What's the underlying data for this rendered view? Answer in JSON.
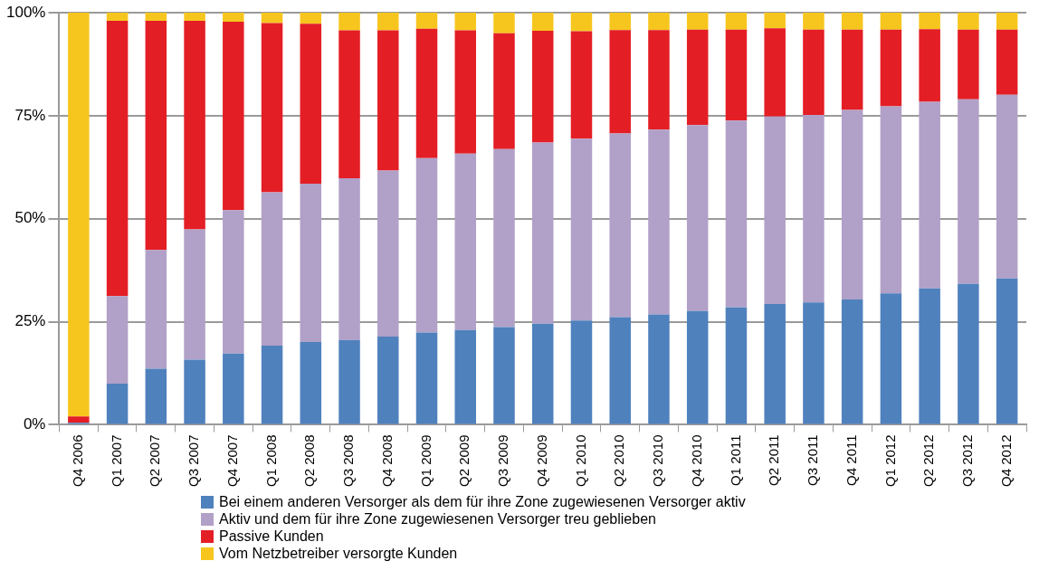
{
  "chart_data": {
    "type": "bar",
    "stacked": true,
    "categories": [
      "Q4 2006",
      "Q1 2007",
      "Q2 2007",
      "Q3 2007",
      "Q4 2007",
      "Q1 2008",
      "Q2 2008",
      "Q3 2008",
      "Q4 2008",
      "Q1 2009",
      "Q2 2009",
      "Q3 2009",
      "Q4 2009",
      "Q1 2010",
      "Q2 2010",
      "Q3 2010",
      "Q4 2010",
      "Q1 2011",
      "Q2 2011",
      "Q3 2011",
      "Q4 2011",
      "Q1 2012",
      "Q2 2012",
      "Q3 2012",
      "Q4 2012"
    ],
    "series": [
      {
        "name": "Bei einem anderen Versorger als dem für ihre Zone zugewiesenen Versorger aktiv",
        "color": "#4f81bd",
        "values": [
          0.5,
          10.0,
          13.6,
          15.8,
          17.3,
          19.2,
          20.1,
          20.6,
          21.4,
          22.4,
          23.0,
          23.7,
          24.5,
          25.3,
          26.1,
          26.8,
          27.6,
          28.5,
          29.3,
          29.7,
          30.4,
          31.9,
          33.1,
          34.2,
          35.5
        ]
      },
      {
        "name": "Aktiv und dem für ihre Zone zugewiesenen Versorger treu geblieben",
        "color": "#b1a0c7",
        "values": [
          0,
          21.2,
          28.8,
          31.6,
          34.8,
          37.2,
          38.4,
          39.2,
          40.3,
          42.3,
          42.8,
          43.2,
          44.0,
          44.1,
          44.6,
          44.8,
          45.1,
          45.3,
          45.5,
          45.5,
          46.0,
          45.4,
          45.3,
          44.8,
          44.6
        ]
      },
      {
        "name": "Passive Kunden",
        "color": "#e41e25",
        "values": [
          1.5,
          66.8,
          55.6,
          50.6,
          45.7,
          41.1,
          38.8,
          35.9,
          34.0,
          31.4,
          29.9,
          28.1,
          27.1,
          26.1,
          25.1,
          24.2,
          23.2,
          22.1,
          21.4,
          20.7,
          19.5,
          18.6,
          17.6,
          16.9,
          15.8
        ]
      },
      {
        "name": "Vom Netzbetreiber versorgte Kunden",
        "color": "#f6c61e",
        "values": [
          98,
          2,
          2,
          2,
          2.2,
          2.5,
          2.7,
          4.3,
          4.3,
          3.9,
          4.3,
          5.0,
          4.4,
          4.5,
          4.2,
          4.2,
          4.1,
          4.1,
          3.8,
          4.1,
          4.1,
          4.1,
          4.0,
          4.1,
          4.1
        ]
      }
    ],
    "ylim": [
      0,
      100
    ],
    "yticks": [
      {
        "value": 0,
        "label": "0%"
      },
      {
        "value": 25,
        "label": "25%"
      },
      {
        "value": 50,
        "label": "50%"
      },
      {
        "value": 75,
        "label": "75%"
      },
      {
        "value": 100,
        "label": "100%"
      }
    ],
    "grid": "y",
    "legend": "bottom"
  }
}
